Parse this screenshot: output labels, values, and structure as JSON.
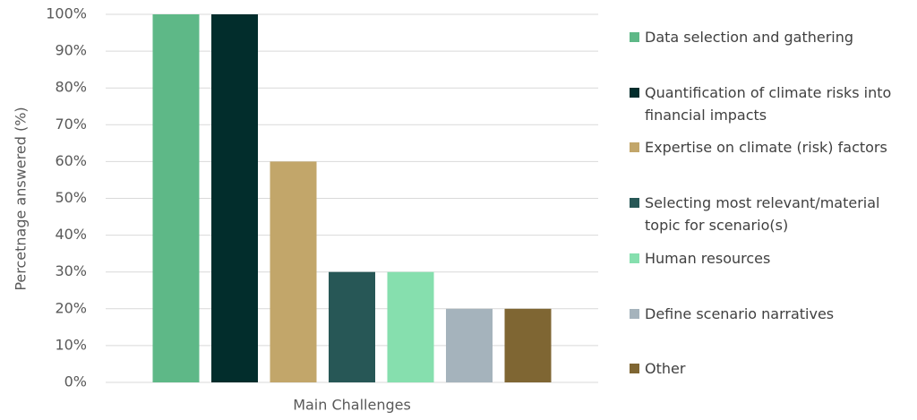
{
  "chart_data": {
    "type": "bar",
    "categories": [
      "Main Challenges"
    ],
    "y_label": "Percetnage answered (%)",
    "series": [
      {
        "name": "Data selection and gathering",
        "color": "#5eb887",
        "values": [
          100
        ]
      },
      {
        "name": "Quantification of climate risks into financial impacts",
        "color": "#022d2c",
        "values": [
          100
        ]
      },
      {
        "name": "Expertise on climate (risk) factors",
        "color": "#c2a66a",
        "values": [
          60
        ]
      },
      {
        "name": "Selecting most relevant/material topic for scenario(s)",
        "color": "#275756",
        "values": [
          30
        ]
      },
      {
        "name": "Human resources",
        "color": "#86dfae",
        "values": [
          30
        ]
      },
      {
        "name": "Define scenario narratives",
        "color": "#a5b3bc",
        "values": [
          20
        ]
      },
      {
        "name": "Other",
        "color": "#7f6633",
        "values": [
          20
        ]
      }
    ],
    "ylim": [
      0,
      100
    ],
    "yticks": [
      {
        "value": 0,
        "label": "0%"
      },
      {
        "value": 10,
        "label": "10%"
      },
      {
        "value": 20,
        "label": "20%"
      },
      {
        "value": 30,
        "label": "30%"
      },
      {
        "value": 40,
        "label": "40%"
      },
      {
        "value": 50,
        "label": "50%"
      },
      {
        "value": 60,
        "label": "60%"
      },
      {
        "value": 70,
        "label": "70%"
      },
      {
        "value": 80,
        "label": "80%"
      },
      {
        "value": 90,
        "label": "90%"
      },
      {
        "value": 100,
        "label": "100%"
      }
    ],
    "grid": true,
    "legend": "right"
  }
}
